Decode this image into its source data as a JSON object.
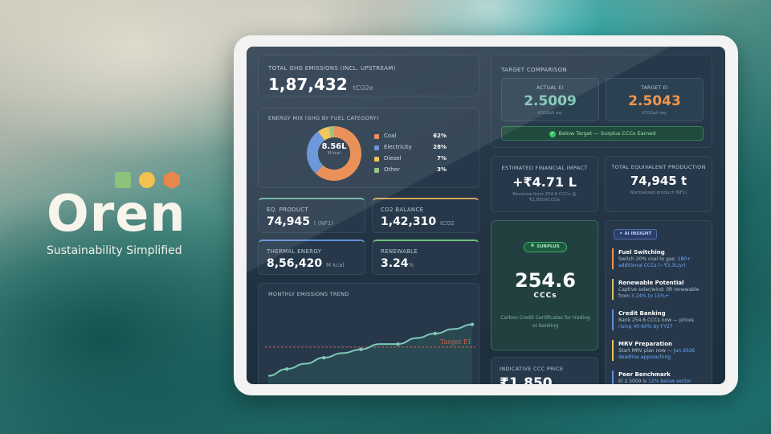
{
  "brand": {
    "name": "Oren",
    "tagline": "Sustainability Simplified",
    "colors": {
      "square": "#8dc27b",
      "circle": "#f2c14e",
      "hexagon": "#e8874a"
    }
  },
  "dashboard": {
    "total": {
      "label": "TOTAL GHG EMISSIONS (INCL. UPSTREAM)",
      "value": "1,87,432",
      "unit": "tCO2e"
    },
    "energy_mix": {
      "label": "ENERGY MIX (GHG BY FUEL CATEGORY)",
      "center_value": "8.56L",
      "center_unit": "M kcal",
      "items": [
        {
          "name": "Coal",
          "pct": "62%",
          "share": 62,
          "color": "#e8874a"
        },
        {
          "name": "Electricity",
          "pct": "28%",
          "share": 28,
          "color": "#5f8fd6"
        },
        {
          "name": "Diesel",
          "pct": "7%",
          "share": 7,
          "color": "#f2c14e"
        },
        {
          "name": "Other",
          "pct": "3%",
          "share": 3,
          "color": "#8dc27b"
        }
      ]
    },
    "eq_product": {
      "label": "EQ. PRODUCT",
      "value": "74,945",
      "unit": "t (NF1)"
    },
    "co2_balance": {
      "label": "CO2 BALANCE",
      "value": "1,42,310",
      "unit": "tCO2"
    },
    "thermal": {
      "label": "THERMAL ENERGY",
      "value": "8,56,420",
      "unit": "M kcal"
    },
    "renewable": {
      "label": "RENEWABLE",
      "value": "3.24",
      "unit": "%"
    },
    "trend": {
      "label": "MONTHLY EMISSIONS TREND",
      "target_label": "Target EI"
    },
    "target_comparison": {
      "label": "TARGET COMPARISON",
      "actual": {
        "label": "ACTUAL EI",
        "value": "2.5009",
        "unit": "tCO2e/t eq."
      },
      "target": {
        "label": "TARGET EI",
        "value": "2.5043",
        "unit": "tCO2e/t eq."
      },
      "status": "Below Target — Surplus CCCs Earned",
      "check_icon": "check-icon"
    },
    "financial": {
      "label": "ESTIMATED FINANCIAL IMPACT",
      "value": "+₹4.71 L",
      "note": "Revenue from 254.6 CCCs @ ₹1,850/tCO2e"
    },
    "production": {
      "label": "TOTAL EQUIVALENT PRODUCTION",
      "value": "74,945 t",
      "note": "Normalized product (NF1)"
    },
    "ccc": {
      "badge": "SURPLUS",
      "value": "254.6",
      "unit": "CCCs",
      "description": "Carbon Credit Certificates for trading or banking"
    },
    "price": {
      "label": "INDICATIVE CCC PRICE",
      "value": "₹1,850"
    },
    "ai": {
      "badge": "AI INSIGHT",
      "insights": [
        {
          "title": "Fuel Switching",
          "text": "Switch 20% coal to gas:",
          "highlight": "180+ additional CCCs (~₹3.3L/yr)"
        },
        {
          "title": "Renewable Potential",
          "text": "Captive solar/wind: lift renewable from",
          "highlight": "3.24% to 15%+"
        },
        {
          "title": "Credit Banking",
          "text": "Bank 254.6 CCCs now — prices",
          "highlight": "rising 40-60% by FY27"
        },
        {
          "title": "MRV Preparation",
          "text": "Start MRV plan now —",
          "highlight": "Jun 2026 deadline approaching"
        },
        {
          "title": "Peer Benchmark",
          "text": "EI 2.5009 is",
          "highlight": "12% below sector"
        }
      ]
    }
  },
  "chart_data": {
    "type": "line",
    "title": "MONTHLY EMISSIONS TREND",
    "series": [
      {
        "values": [
          1.0,
          1.9,
          2.6,
          3.4,
          4.0,
          4.5,
          5.2,
          5.2,
          6.0,
          6.6,
          7.2,
          7.8
        ]
      }
    ],
    "target": 4.8,
    "ylim": [
      0,
      10
    ],
    "grid": false,
    "colors": {
      "line": "#7fc8b8",
      "area": "#2c5558",
      "target": "#e05a4a"
    }
  }
}
